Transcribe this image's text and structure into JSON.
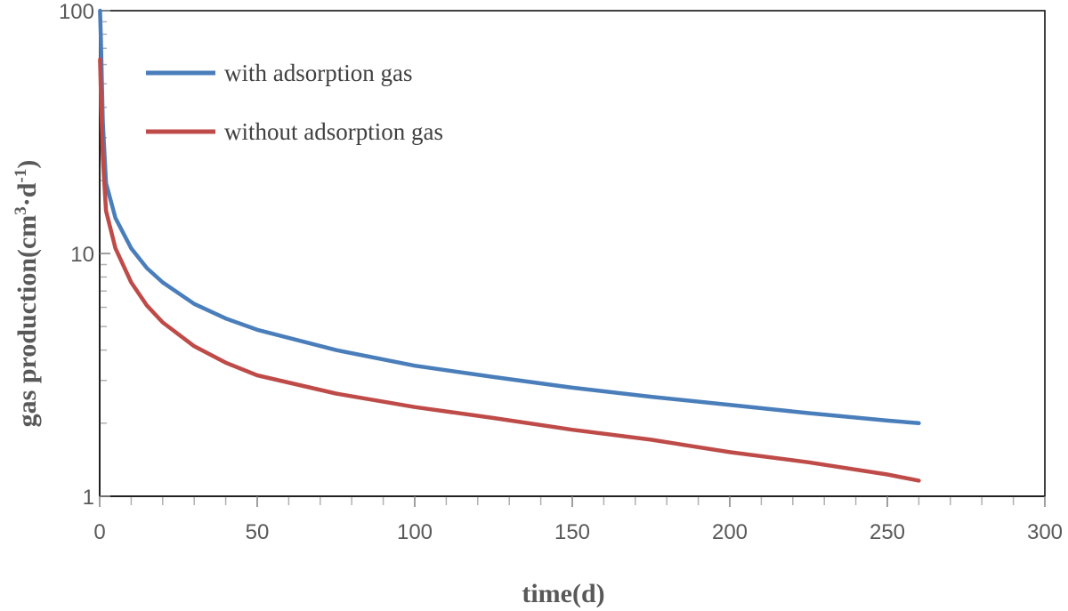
{
  "chart_data": {
    "type": "line",
    "xlabel": "time(d)",
    "ylabel": {
      "main": "gas production(cm",
      "sup1": "3",
      "mid": "·d",
      "sup2": "-1",
      "end": ")"
    },
    "xlim": [
      0,
      300
    ],
    "ylim": [
      1,
      100
    ],
    "yscale": "log",
    "x_ticks": [
      "0",
      "50",
      "100",
      "150",
      "200",
      "250",
      "300"
    ],
    "y_ticks": [
      "1",
      "10",
      "100"
    ],
    "legend_position": "top-left",
    "series": [
      {
        "name": "with adsorption gas",
        "color": "#4a7ebb",
        "points": [
          [
            0.1,
            100
          ],
          [
            0.4,
            75
          ],
          [
            1,
            35
          ],
          [
            2,
            19.5
          ],
          [
            5,
            14
          ],
          [
            10,
            10.5
          ],
          [
            15,
            8.7
          ],
          [
            20,
            7.6
          ],
          [
            30,
            6.2
          ],
          [
            40,
            5.4
          ],
          [
            50,
            4.85
          ],
          [
            75,
            4.0
          ],
          [
            100,
            3.45
          ],
          [
            125,
            3.1
          ],
          [
            150,
            2.8
          ],
          [
            175,
            2.57
          ],
          [
            200,
            2.38
          ],
          [
            225,
            2.2
          ],
          [
            250,
            2.05
          ],
          [
            260,
            2.0
          ]
        ]
      },
      {
        "name": "without adsorption gas",
        "color": "#be4b48",
        "points": [
          [
            0.1,
            63
          ],
          [
            0.5,
            40
          ],
          [
            1,
            25
          ],
          [
            2,
            15
          ],
          [
            5,
            10.5
          ],
          [
            10,
            7.6
          ],
          [
            15,
            6.1
          ],
          [
            20,
            5.2
          ],
          [
            30,
            4.15
          ],
          [
            40,
            3.55
          ],
          [
            50,
            3.15
          ],
          [
            75,
            2.65
          ],
          [
            100,
            2.33
          ],
          [
            125,
            2.1
          ],
          [
            150,
            1.88
          ],
          [
            175,
            1.71
          ],
          [
            200,
            1.52
          ],
          [
            225,
            1.38
          ],
          [
            250,
            1.23
          ],
          [
            260,
            1.16
          ]
        ]
      }
    ]
  }
}
